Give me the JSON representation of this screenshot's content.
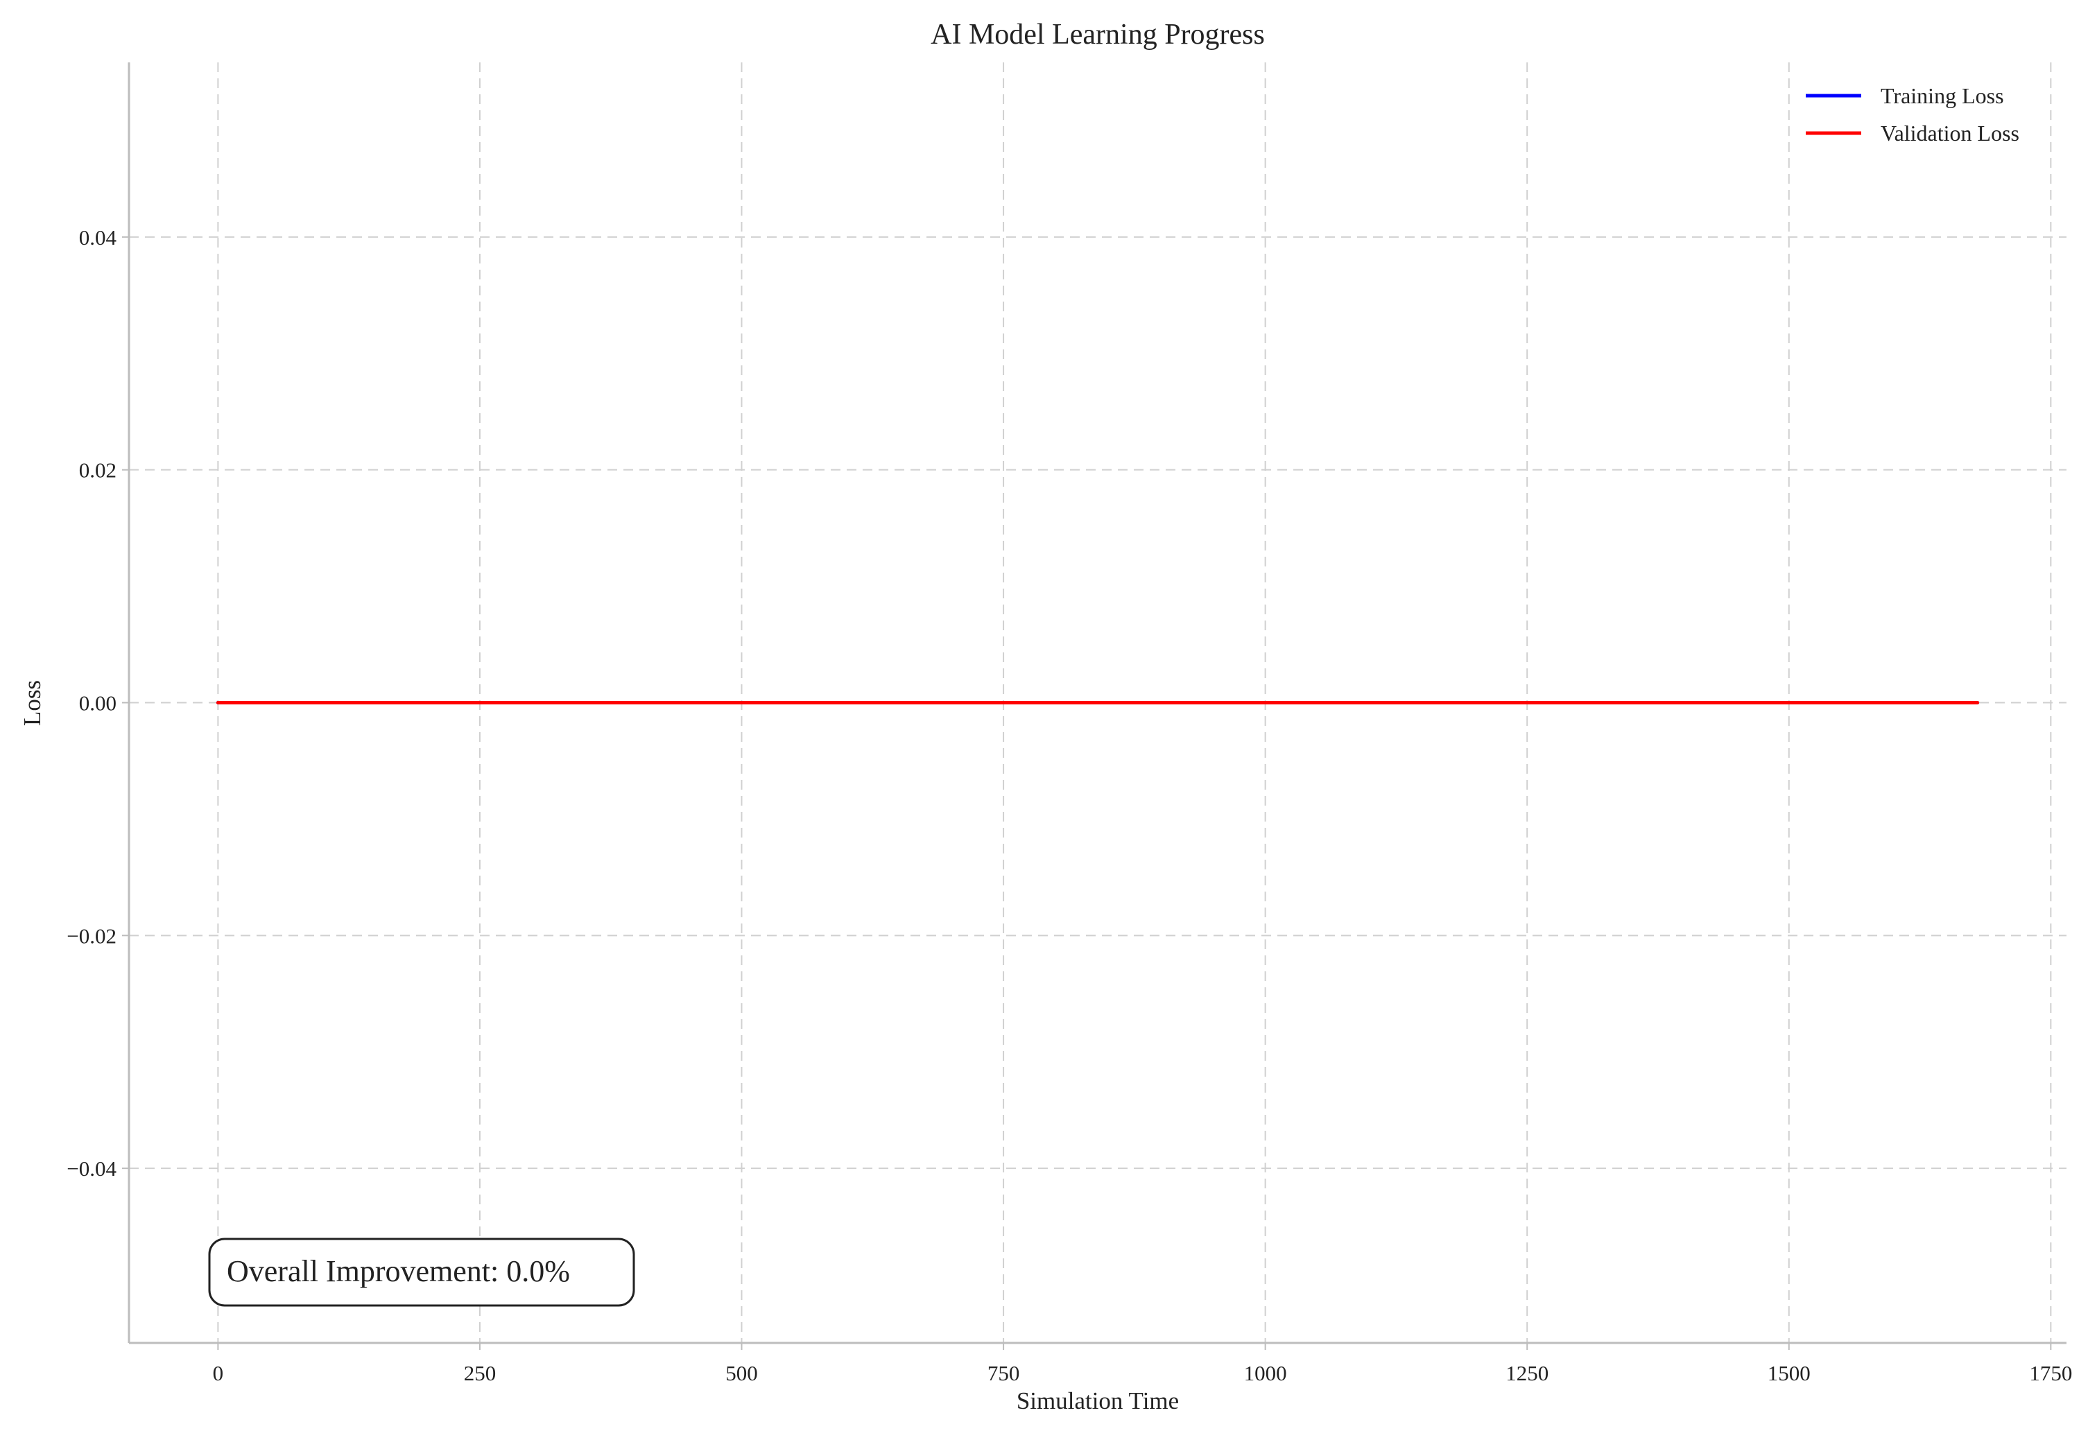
{
  "chart_data": {
    "type": "line",
    "title": "AI Model Learning Progress",
    "xlabel": "Simulation Time",
    "ylabel": "Loss",
    "xlim": [
      -85,
      1765
    ],
    "ylim": [
      -0.055,
      0.055
    ],
    "xticks": [
      0,
      250,
      500,
      750,
      1000,
      1250,
      1500,
      1750
    ],
    "xtick_labels": [
      "0",
      "250",
      "500",
      "750",
      "1000",
      "1250",
      "1500",
      "1750"
    ],
    "yticks": [
      0.04,
      0.02,
      0.0,
      -0.02,
      -0.04
    ],
    "ytick_labels": [
      "0.04",
      "0.02",
      "0.00",
      "−0.02",
      "−0.04"
    ],
    "grid": true,
    "legend_position": "top-right",
    "series": [
      {
        "name": "Training Loss",
        "color": "#0000ff",
        "x": [
          0,
          1680
        ],
        "y": [
          0.0,
          0.0
        ]
      },
      {
        "name": "Validation Loss",
        "color": "#ff0000",
        "x": [
          0,
          1680
        ],
        "y": [
          0.0,
          0.0
        ]
      }
    ],
    "annotation": {
      "text": "Overall Improvement: 0.0%",
      "position": "bottom-left"
    }
  }
}
